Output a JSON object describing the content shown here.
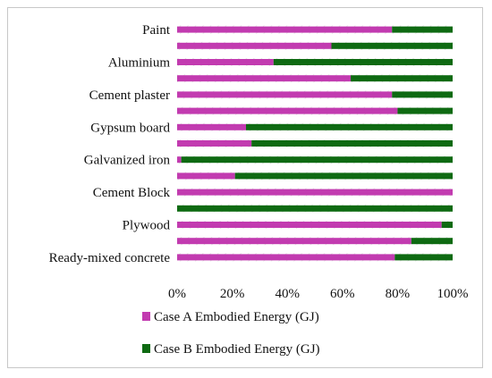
{
  "chart_data": {
    "type": "bar",
    "orientation": "horizontal",
    "stacked": "percent",
    "categories": [
      "Paint",
      "",
      "Aluminium",
      "",
      "Cement plaster",
      "",
      "Gypsum board",
      "",
      "Galvanized iron",
      "",
      "Cement Block",
      "",
      "Plywood",
      "",
      "Ready-mixed concrete"
    ],
    "series": [
      {
        "name": "Case A  Embodied Energy (GJ)",
        "color": "#c23bb0",
        "values": [
          78,
          56,
          35,
          63,
          78,
          80,
          25,
          27,
          1.5,
          21,
          100,
          0,
          96,
          85,
          79
        ]
      },
      {
        "name": "Case B  Embodied Energy (GJ)",
        "color": "#0e6a12",
        "values": [
          22,
          44,
          65,
          37,
          22,
          20,
          75,
          73,
          98.5,
          79,
          0,
          100,
          4,
          15,
          21
        ]
      }
    ],
    "xaxis_ticks": [
      "0%",
      "20%",
      "40%",
      "60%",
      "80%",
      "100%"
    ],
    "xlim": [
      0,
      100
    ],
    "legend_position": "bottom",
    "background_pattern": "diagonal hatch"
  }
}
